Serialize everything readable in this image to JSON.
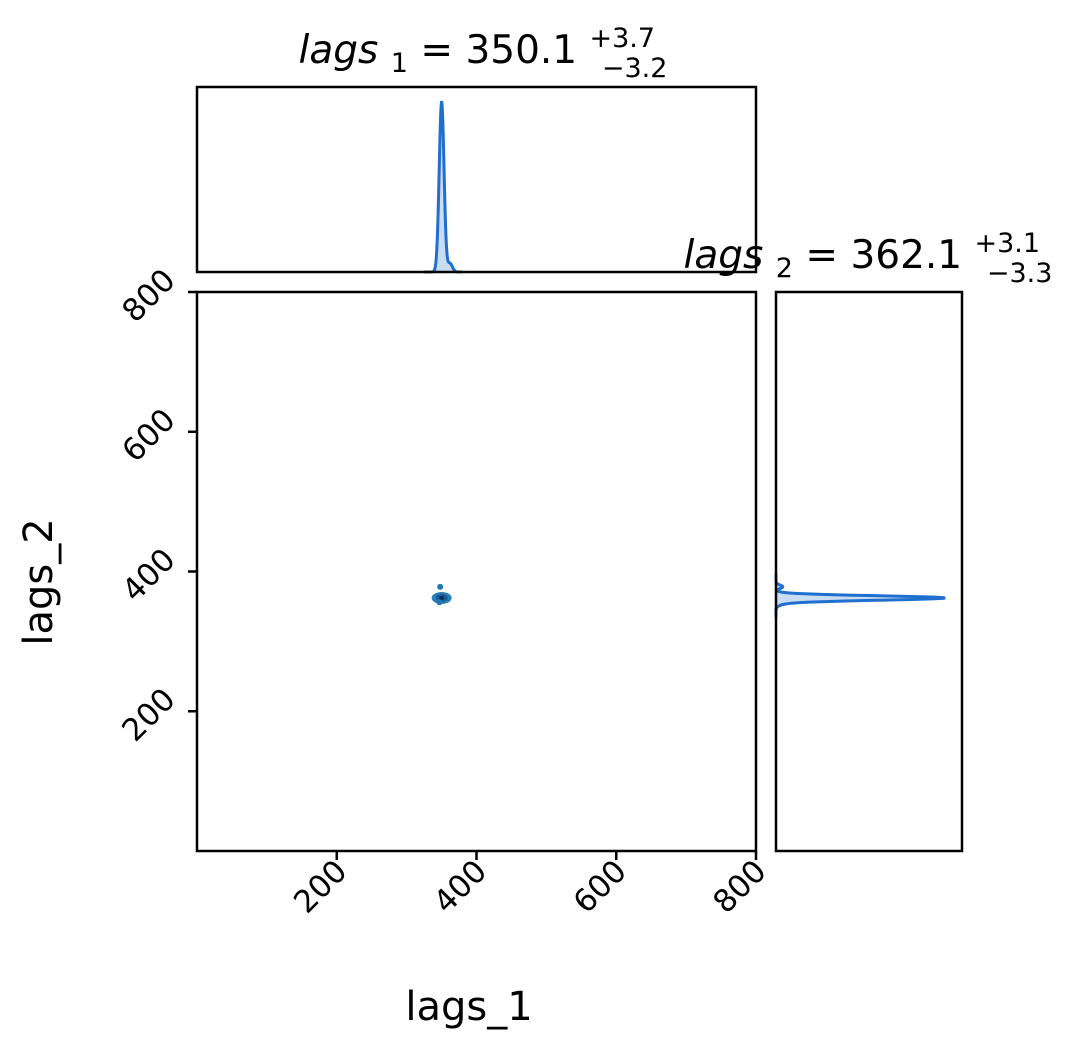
{
  "chart_data": {
    "type": "corner",
    "parameters": [
      "lags_1",
      "lags_2"
    ],
    "xlabel": "lags_1",
    "ylabel": "lags_2",
    "xlim": [
      0,
      800
    ],
    "ylim": [
      0,
      800
    ],
    "xticks": [
      200,
      400,
      600,
      800
    ],
    "yticks": [
      200,
      400,
      600,
      800
    ],
    "marginals": [
      {
        "parameter": "lags_1",
        "title": {
          "symbol": "lags",
          "index": "1",
          "value": "350.1",
          "plus": "+3.7",
          "minus": "−3.2"
        },
        "median": 350.1,
        "err_plus": 3.7,
        "err_minus": 3.2
      },
      {
        "parameter": "lags_2",
        "title": {
          "symbol": "lags",
          "index": "2",
          "value": "362.1",
          "plus": "+3.1",
          "minus": "−3.3"
        },
        "median": 362.1,
        "err_plus": 3.1,
        "err_minus": 3.3
      }
    ],
    "joint": {
      "center": [
        350.1,
        362.1
      ],
      "outliers": [
        [
          348,
          378
        ],
        [
          347,
          356
        ]
      ]
    },
    "colors": {
      "line": "#1f6fcf",
      "fill": "#c8dcf2",
      "scatter": "#1f77b4",
      "core": "#0b2f55"
    },
    "grid": false,
    "legend": "none"
  }
}
